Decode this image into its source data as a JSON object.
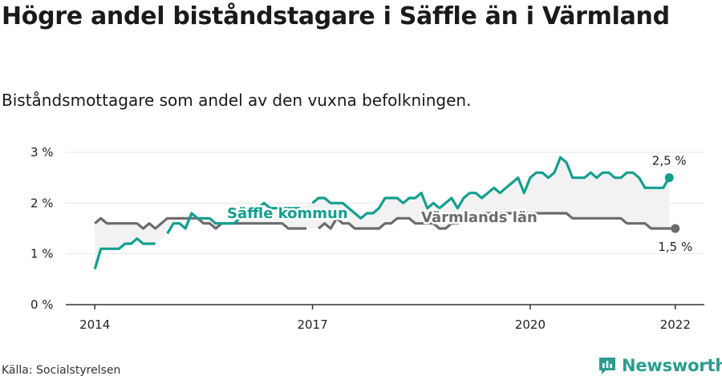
{
  "header": {
    "title": "Högre andel biståndstagare i Säffle än i Värmland",
    "subtitle": "Biståndsmottagare som andel av den vuxna befolkningen."
  },
  "footer": {
    "source": "Källa: Socialstyrelsen",
    "brand": "Newsworthy"
  },
  "colors": {
    "saffle": "#139e8f",
    "varmland": "#6b6b6f",
    "fill": "#f2f2f2",
    "grid": "#e6e6e6",
    "axis": "#333333"
  },
  "chart_data": {
    "type": "line",
    "x_start": 2014.0,
    "x_step": 0.08333,
    "xlim": [
      2013.6,
      2022.4
    ],
    "ylim": [
      0,
      3
    ],
    "x_ticks": [
      2014,
      2017,
      2020,
      2022
    ],
    "y_ticks": [
      0,
      1,
      2,
      3
    ],
    "y_tick_labels": [
      "0 %",
      "1 %",
      "2 %",
      "3 %"
    ],
    "grid": true,
    "series": [
      {
        "name": "Säffle kommun",
        "end_label": "2,5 %",
        "values": [
          0.7,
          1.1,
          1.1,
          1.1,
          1.1,
          1.2,
          1.2,
          1.3,
          1.2,
          1.2,
          1.2,
          null,
          1.4,
          1.6,
          1.6,
          1.5,
          1.8,
          1.7,
          1.7,
          1.7,
          1.6,
          1.6,
          1.6,
          1.6,
          1.7,
          1.7,
          1.8,
          1.9,
          2.0,
          1.9,
          1.9,
          1.9,
          1.9,
          1.9,
          1.9,
          null,
          2.0,
          2.1,
          2.1,
          2.0,
          2.0,
          2.0,
          1.9,
          1.8,
          1.7,
          1.8,
          1.8,
          1.9,
          2.1,
          2.1,
          2.1,
          2.0,
          2.1,
          2.1,
          2.2,
          1.9,
          2.0,
          1.9,
          2.0,
          2.1,
          1.9,
          2.1,
          2.2,
          2.2,
          2.1,
          2.2,
          2.3,
          2.2,
          2.3,
          2.4,
          2.5,
          2.2,
          2.5,
          2.6,
          2.6,
          2.5,
          2.6,
          2.9,
          2.8,
          2.5,
          2.5,
          2.5,
          2.6,
          2.5,
          2.6,
          2.6,
          2.5,
          2.5,
          2.6,
          2.6,
          2.5,
          2.3,
          2.3,
          2.3,
          2.3,
          2.5
        ]
      },
      {
        "name": "Värmlands län",
        "end_label": "1,5 %",
        "values": [
          1.6,
          1.7,
          1.6,
          1.6,
          1.6,
          1.6,
          1.6,
          1.6,
          1.5,
          1.6,
          1.5,
          1.6,
          1.7,
          1.7,
          1.7,
          1.7,
          1.7,
          1.7,
          1.6,
          1.6,
          1.5,
          1.6,
          1.6,
          1.6,
          1.6,
          1.6,
          1.6,
          1.6,
          1.6,
          1.6,
          1.6,
          1.6,
          1.5,
          1.5,
          1.5,
          1.5,
          null,
          1.5,
          1.6,
          1.5,
          1.7,
          1.6,
          1.6,
          1.5,
          1.5,
          1.5,
          1.5,
          1.5,
          1.6,
          1.6,
          1.7,
          1.7,
          1.7,
          1.6,
          1.6,
          1.6,
          1.6,
          1.5,
          1.5,
          1.6,
          1.6,
          1.7,
          1.7,
          1.7,
          1.8,
          1.8,
          1.8,
          1.8,
          1.8,
          1.8,
          1.8,
          1.8,
          1.8,
          1.8,
          1.8,
          1.8,
          1.8,
          1.8,
          1.8,
          1.7,
          1.7,
          1.7,
          1.7,
          1.7,
          1.7,
          1.7,
          1.7,
          1.7,
          1.6,
          1.6,
          1.6,
          1.6,
          1.5,
          1.5,
          1.5,
          1.5,
          1.5
        ]
      }
    ]
  }
}
